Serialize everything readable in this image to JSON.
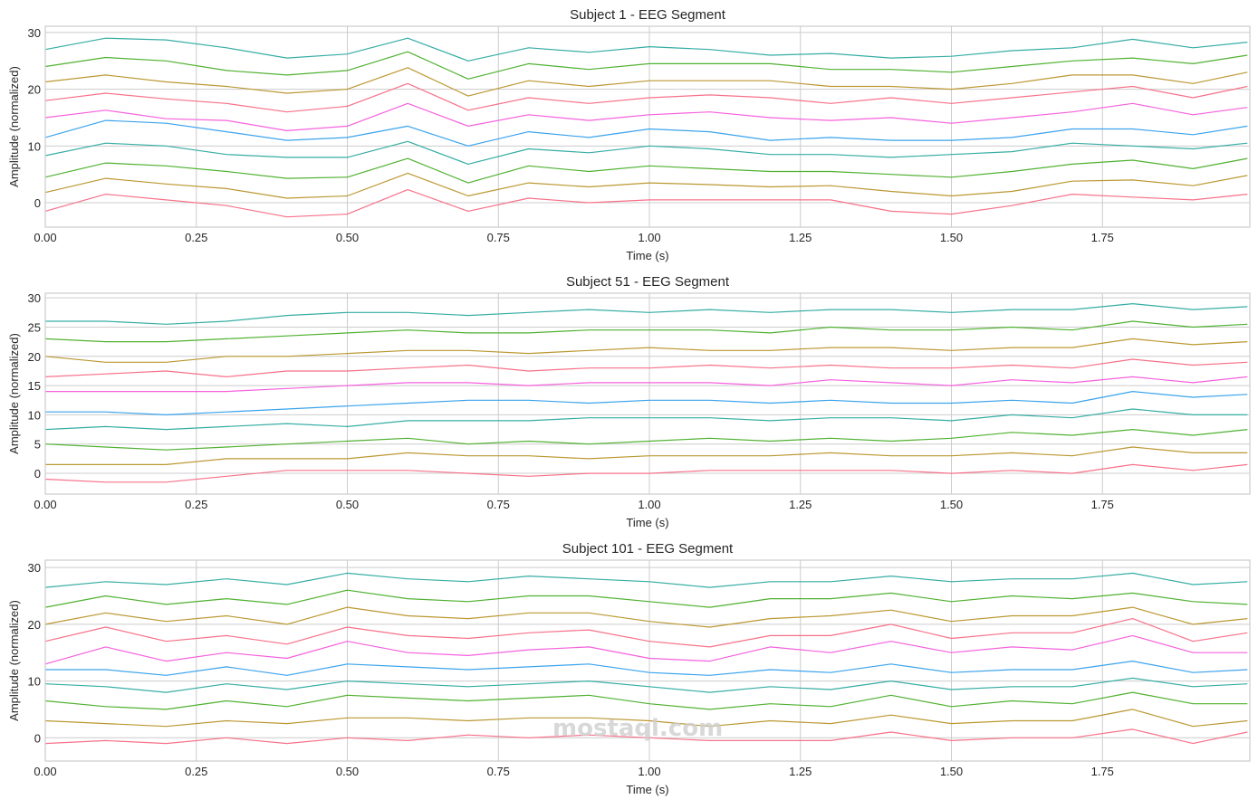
{
  "colors": [
    "#f77189",
    "#bb9832",
    "#50b131",
    "#36ada4",
    "#3ba3ec",
    "#f561dd",
    "#f77189",
    "#bb9832",
    "#50b131",
    "#36ada4"
  ],
  "watermark": "mostaql.com",
  "chart_data": [
    {
      "type": "line",
      "title": "Subject 1 - EEG Segment",
      "xlabel": "Time (s)",
      "ylabel": "Amplitude (normalized)",
      "xlim": [
        0,
        1.994
      ],
      "ylim": [
        -4.3,
        31.1
      ],
      "xticks": [
        "0.00",
        "0.25",
        "0.50",
        "0.75",
        "1.00",
        "1.25",
        "1.50",
        "1.75"
      ],
      "yticks": [
        "0",
        "10",
        "20",
        "30"
      ],
      "grid": true,
      "x": [
        0,
        0.1,
        0.2,
        0.3,
        0.4,
        0.5,
        0.6,
        0.7,
        0.8,
        0.9,
        1.0,
        1.1,
        1.2,
        1.3,
        1.4,
        1.5,
        1.6,
        1.7,
        1.8,
        1.9,
        1.99
      ],
      "series": [
        {
          "values": [
            -1.5,
            1.5,
            0.5,
            -0.5,
            -2.5,
            -2,
            2.3,
            -1.5,
            0.8,
            0,
            0.5,
            0.5,
            0.5,
            0.5,
            -1.5,
            -2,
            -0.5,
            1.5,
            1,
            0.5,
            1.5
          ]
        },
        {
          "values": [
            1.8,
            4.3,
            3.3,
            2.5,
            0.8,
            1.2,
            5.2,
            1.2,
            3.5,
            2.8,
            3.5,
            3.2,
            2.8,
            3,
            2,
            1.2,
            2,
            3.8,
            4,
            3,
            4.8
          ]
        },
        {
          "values": [
            4.5,
            7,
            6.5,
            5.5,
            4.3,
            4.5,
            7.8,
            3.5,
            6.5,
            5.5,
            6.5,
            6,
            5.5,
            5.5,
            5,
            4.5,
            5.5,
            6.8,
            7.5,
            6,
            7.8
          ]
        },
        {
          "values": [
            8.3,
            10.5,
            10,
            8.5,
            8,
            8,
            10.8,
            6.8,
            9.5,
            8.8,
            10,
            9.5,
            8.5,
            8.5,
            8,
            8.5,
            9,
            10.5,
            10,
            9.5,
            10.5
          ]
        },
        {
          "values": [
            11.5,
            14.5,
            14,
            12.5,
            11,
            11.5,
            13.5,
            10,
            12.5,
            11.5,
            13,
            12.5,
            11,
            11.5,
            11,
            11,
            11.5,
            13,
            13,
            12,
            13.5
          ]
        },
        {
          "values": [
            15,
            16.3,
            14.8,
            14.5,
            12.7,
            13.5,
            17.5,
            13.5,
            15.5,
            14.5,
            15.5,
            16,
            15,
            14.5,
            15,
            14,
            15,
            16,
            17.5,
            15.5,
            16.8
          ]
        },
        {
          "values": [
            18,
            19.3,
            18.3,
            17.5,
            16,
            17,
            21,
            16.3,
            18.5,
            17.5,
            18.5,
            19,
            18.5,
            17.5,
            18.5,
            17.5,
            18.5,
            19.5,
            20.5,
            18.5,
            20.5
          ]
        },
        {
          "values": [
            21.3,
            22.5,
            21.3,
            20.5,
            19.3,
            20,
            23.8,
            18.8,
            21.5,
            20.5,
            21.5,
            21.5,
            21.5,
            20.5,
            20.5,
            20,
            21,
            22.5,
            22.5,
            21,
            23
          ]
        },
        {
          "values": [
            24,
            25.6,
            25,
            23.3,
            22.5,
            23.3,
            26.6,
            21.8,
            24.5,
            23.5,
            24.5,
            24.5,
            24.5,
            23.5,
            23.5,
            23,
            24,
            25,
            25.5,
            24.5,
            26
          ]
        },
        {
          "values": [
            27,
            29,
            28.7,
            27.3,
            25.5,
            26.2,
            29,
            25,
            27.3,
            26.5,
            27.5,
            27,
            26,
            26.3,
            25.5,
            25.8,
            26.8,
            27.3,
            28.8,
            27.3,
            28.3
          ]
        }
      ]
    },
    {
      "type": "line",
      "title": "Subject 51 - EEG Segment",
      "xlabel": "Time (s)",
      "ylabel": "Amplitude (normalized)",
      "xlim": [
        0,
        1.994
      ],
      "ylim": [
        -3.55,
        30.8
      ],
      "xticks": [
        "0.00",
        "0.25",
        "0.50",
        "0.75",
        "1.00",
        "1.25",
        "1.50",
        "1.75"
      ],
      "yticks": [
        "0",
        "5",
        "10",
        "15",
        "20",
        "25",
        "30"
      ],
      "grid": true,
      "x": [
        0,
        0.1,
        0.2,
        0.3,
        0.4,
        0.5,
        0.6,
        0.7,
        0.8,
        0.9,
        1.0,
        1.1,
        1.2,
        1.3,
        1.4,
        1.5,
        1.6,
        1.7,
        1.8,
        1.9,
        1.99
      ],
      "series": [
        {
          "values": [
            -1,
            -1.5,
            -1.5,
            -0.5,
            0.5,
            0.5,
            0.5,
            0,
            -0.5,
            0,
            0,
            0.5,
            0.5,
            0.5,
            0.5,
            0,
            0.5,
            0,
            1.5,
            0.5,
            1.5
          ]
        },
        {
          "values": [
            1.5,
            1.5,
            1.5,
            2.5,
            2.5,
            2.5,
            3.5,
            3,
            3,
            2.5,
            3,
            3,
            3,
            3.5,
            3,
            3,
            3.5,
            3,
            4.5,
            3.5,
            3.5
          ]
        },
        {
          "values": [
            5,
            4.5,
            4,
            4.5,
            5,
            5.5,
            6,
            5,
            5.5,
            5,
            5.5,
            6,
            5.5,
            6,
            5.5,
            6,
            7,
            6.5,
            7.5,
            6.5,
            7.5
          ]
        },
        {
          "values": [
            7.5,
            8,
            7.5,
            8,
            8.5,
            8,
            9,
            9,
            9,
            9.5,
            9.5,
            9.5,
            9,
            9.5,
            9.5,
            9,
            10,
            9.5,
            11,
            10,
            10
          ]
        },
        {
          "values": [
            10.5,
            10.5,
            10,
            10.5,
            11,
            11.5,
            12,
            12.5,
            12.5,
            12,
            12.5,
            12.5,
            12,
            12.5,
            12,
            12,
            12.5,
            12,
            14,
            13,
            13.5
          ]
        },
        {
          "values": [
            14,
            14,
            14,
            14,
            14.5,
            15,
            15.5,
            15.5,
            15,
            15.5,
            15.5,
            15.5,
            15,
            16,
            15.5,
            15,
            16,
            15.5,
            16.5,
            15.5,
            16.5
          ]
        },
        {
          "values": [
            16.5,
            17,
            17.5,
            16.5,
            17.5,
            17.5,
            18,
            18.5,
            17.5,
            18,
            18,
            18.5,
            18,
            18.5,
            18,
            18,
            18.5,
            18,
            19.5,
            18.5,
            19
          ]
        },
        {
          "values": [
            20,
            19,
            19,
            20,
            20,
            20.5,
            21,
            21,
            20.5,
            21,
            21.5,
            21,
            21,
            21.5,
            21.5,
            21,
            21.5,
            21.5,
            23,
            22,
            22.5
          ]
        },
        {
          "values": [
            23,
            22.5,
            22.5,
            23,
            23.5,
            24,
            24.5,
            24,
            24,
            24.5,
            24.5,
            24.5,
            24,
            25,
            24.5,
            24.5,
            25,
            24.5,
            26,
            25,
            25.5
          ]
        },
        {
          "values": [
            26,
            26,
            25.5,
            26,
            27,
            27.5,
            27.5,
            27,
            27.5,
            28,
            27.5,
            28,
            27.5,
            28,
            28,
            27.5,
            28,
            28,
            29,
            28,
            28.5
          ]
        }
      ]
    },
    {
      "type": "line",
      "title": "Subject 101 - EEG Segment",
      "xlabel": "Time (s)",
      "ylabel": "Amplitude (normalized)",
      "xlim": [
        0,
        1.994
      ],
      "ylim": [
        -4.1,
        31.3
      ],
      "xticks": [
        "0.00",
        "0.25",
        "0.50",
        "0.75",
        "1.00",
        "1.25",
        "1.50",
        "1.75"
      ],
      "yticks": [
        "0",
        "10",
        "20",
        "30"
      ],
      "grid": true,
      "x": [
        0,
        0.1,
        0.2,
        0.3,
        0.4,
        0.5,
        0.6,
        0.7,
        0.8,
        0.9,
        1.0,
        1.1,
        1.2,
        1.3,
        1.4,
        1.5,
        1.6,
        1.7,
        1.8,
        1.9,
        1.99
      ],
      "series": [
        {
          "values": [
            -1,
            -0.5,
            -1,
            0,
            -1,
            0,
            -0.5,
            0.5,
            0,
            0.5,
            0,
            -0.5,
            -0.5,
            -0.5,
            1,
            -0.5,
            0,
            0,
            1.5,
            -1,
            1
          ]
        },
        {
          "values": [
            3,
            2.5,
            2,
            3,
            2.5,
            3.5,
            3.5,
            3,
            3.5,
            3.5,
            3,
            2,
            3,
            2.5,
            4,
            2.5,
            3,
            3,
            5,
            2,
            3
          ]
        },
        {
          "values": [
            6.5,
            5.5,
            5,
            6.5,
            5.5,
            7.5,
            7,
            6.5,
            7,
            7.5,
            6,
            5,
            6,
            5.5,
            7.5,
            5.5,
            6.5,
            6,
            8,
            6,
            6
          ]
        },
        {
          "values": [
            9.5,
            9,
            8,
            9.5,
            8.5,
            10,
            9.5,
            9,
            9.5,
            10,
            9,
            8,
            9,
            8.5,
            10,
            8.5,
            9,
            9,
            10.5,
            9,
            9.5
          ]
        },
        {
          "values": [
            12,
            12,
            11,
            12.5,
            11,
            13,
            12.5,
            12,
            12.5,
            13,
            11.5,
            11,
            12,
            11.5,
            13,
            11.5,
            12,
            12,
            13.5,
            11.5,
            12
          ]
        },
        {
          "values": [
            13,
            16,
            13.5,
            15,
            14,
            17,
            15,
            14.5,
            15.5,
            16,
            14,
            13.5,
            16,
            15,
            17,
            15,
            16,
            15.5,
            18,
            15,
            15
          ]
        },
        {
          "values": [
            17,
            19.5,
            17,
            18,
            16.5,
            19.5,
            18,
            17.5,
            18.5,
            19,
            17,
            16,
            18,
            18,
            20,
            17.5,
            18.5,
            18.5,
            21,
            17,
            18.5
          ]
        },
        {
          "values": [
            20,
            22,
            20.5,
            21.5,
            20,
            23,
            21.5,
            21,
            22,
            22,
            20.5,
            19.5,
            21,
            21.5,
            22.5,
            20.5,
            21.5,
            21.5,
            23,
            20,
            21
          ]
        },
        {
          "values": [
            23,
            25,
            23.5,
            24.5,
            23.5,
            26,
            24.5,
            24,
            25,
            25,
            24,
            23,
            24.5,
            24.5,
            25.5,
            24,
            25,
            24.5,
            25.5,
            24,
            23.5
          ]
        },
        {
          "values": [
            26.5,
            27.5,
            27,
            28,
            27,
            29,
            28,
            27.5,
            28.5,
            28,
            27.5,
            26.5,
            27.5,
            27.5,
            28.5,
            27.5,
            28,
            28,
            29,
            27,
            27.5
          ]
        }
      ]
    }
  ]
}
